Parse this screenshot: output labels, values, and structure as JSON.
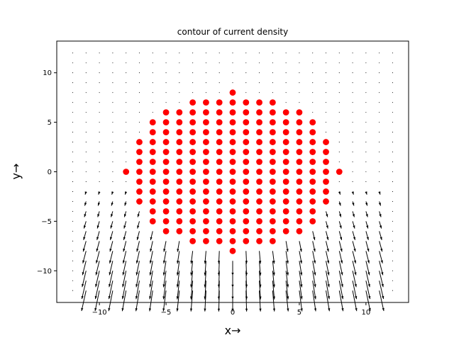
{
  "chart_data": {
    "type": "quiver",
    "title": "contour of current density",
    "xlabel": "x→",
    "ylabel": "y→",
    "xlim": [
      -13.2,
      13.2
    ],
    "ylim": [
      -13.2,
      13.2
    ],
    "xticks": [
      -10,
      -5,
      0,
      5,
      10
    ],
    "yticks": [
      -10,
      -5,
      0,
      5,
      10
    ],
    "xtick_labels": [
      "−10",
      "−5",
      "0",
      "5",
      "10"
    ],
    "ytick_labels": [
      "−10",
      "−5",
      "0",
      "5",
      "10"
    ],
    "grid": false,
    "legend": "none",
    "marker_color": "#ff0000",
    "arrow_color": "#000000",
    "quiver_grid": {
      "x_range": [
        -12,
        12
      ],
      "y_range": [
        -12,
        12
      ],
      "step": 1
    },
    "marker_rows": [
      {
        "y": 8,
        "x_min": 0,
        "x_max": 0
      },
      {
        "y": 7,
        "x_min": -3,
        "x_max": 3
      },
      {
        "y": 6,
        "x_min": -5,
        "x_max": 5
      },
      {
        "y": 5,
        "x_min": -6,
        "x_max": 6
      },
      {
        "y": 4,
        "x_min": -6,
        "x_max": 6
      },
      {
        "y": 3,
        "x_min": -7,
        "x_max": 7
      },
      {
        "y": 2,
        "x_min": -7,
        "x_max": 7
      },
      {
        "y": 1,
        "x_min": -7,
        "x_max": 7
      },
      {
        "y": 0,
        "x_min": -8,
        "x_max": 8
      },
      {
        "y": -1,
        "x_min": -7,
        "x_max": 7
      },
      {
        "y": -2,
        "x_min": -7,
        "x_max": 7
      },
      {
        "y": -3,
        "x_min": -7,
        "x_max": 7
      },
      {
        "y": -4,
        "x_min": -6,
        "x_max": 6
      },
      {
        "y": -5,
        "x_min": -6,
        "x_max": 6
      },
      {
        "y": -6,
        "x_min": -5,
        "x_max": 5
      },
      {
        "y": -7,
        "x_min": -3,
        "x_max": 3
      },
      {
        "y": -8,
        "x_min": 0,
        "x_max": 0
      }
    ]
  }
}
